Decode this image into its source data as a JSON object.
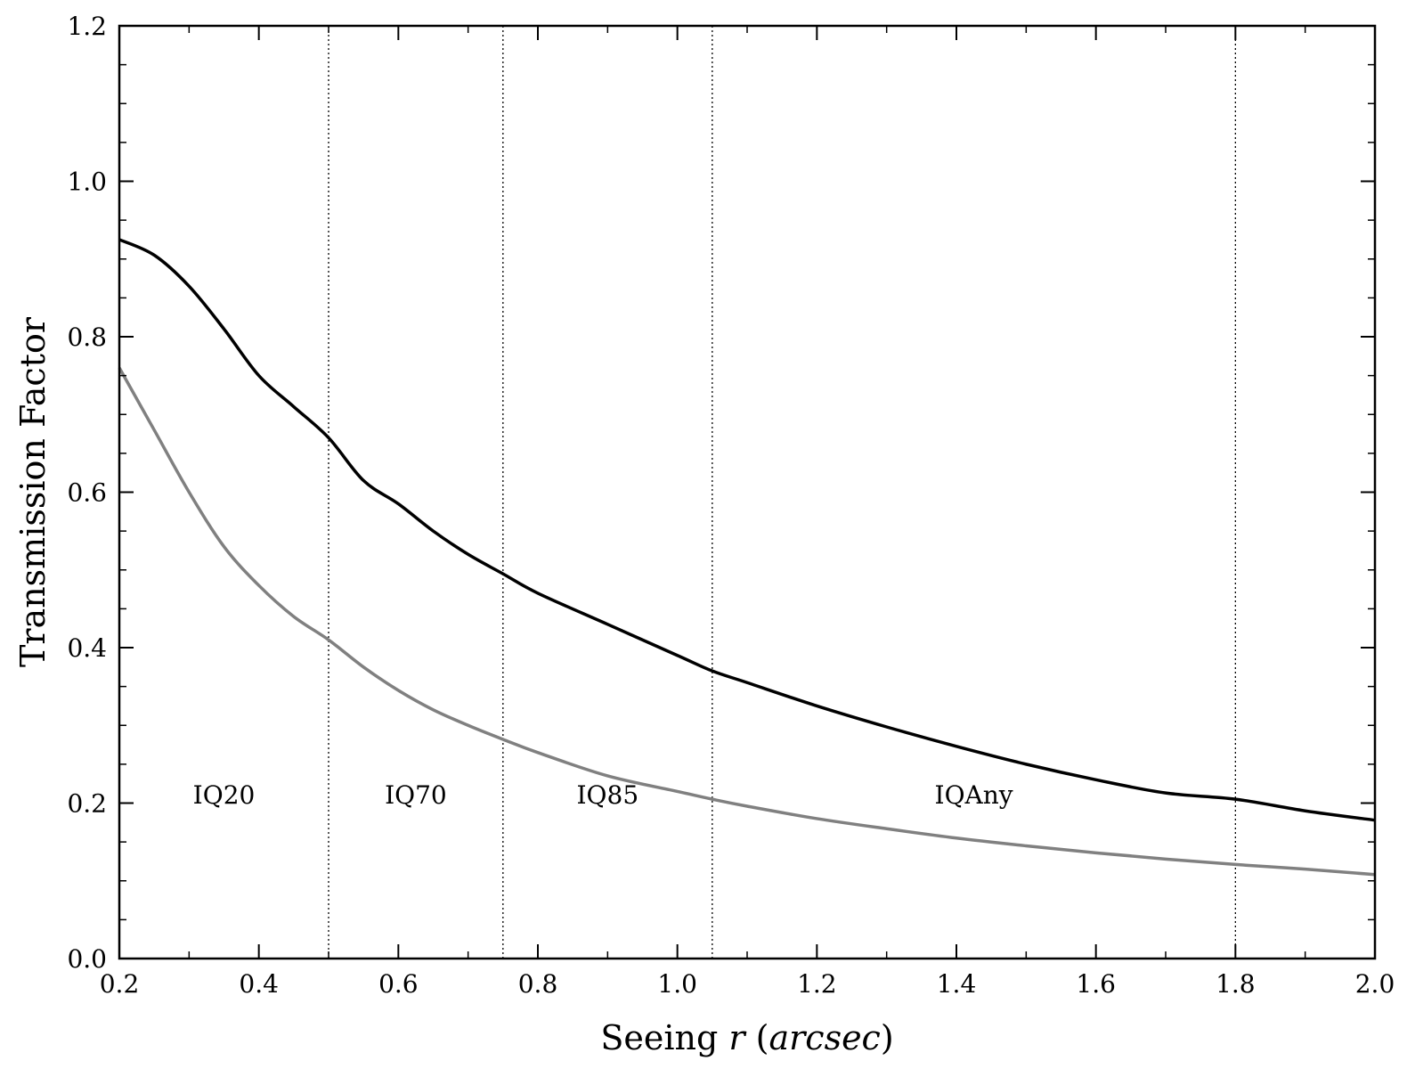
{
  "chart_data": {
    "type": "line",
    "title": "",
    "xlabel": "Seeing",
    "xlabel_var": "r",
    "xlabel_unit": "arcsec",
    "ylabel": "Transmission Factor",
    "xlim": [
      0.2,
      2.0
    ],
    "ylim": [
      0.0,
      1.2
    ],
    "x_ticks": [
      0.2,
      0.4,
      0.6,
      0.8,
      1.0,
      1.2,
      1.4,
      1.6,
      1.8,
      2.0
    ],
    "x_tick_labels": [
      "0.2",
      "0.4",
      "0.6",
      "0.8",
      "1.0",
      "1.2",
      "1.4",
      "1.6",
      "1.8",
      "2.0"
    ],
    "y_ticks": [
      0.0,
      0.2,
      0.4,
      0.6,
      0.8,
      1.0,
      1.2
    ],
    "y_tick_labels": [
      "0.0",
      "0.2",
      "0.4",
      "0.6",
      "0.8",
      "1.0",
      "1.2"
    ],
    "grid": false,
    "vertical_lines": [
      0.5,
      0.75,
      1.05,
      1.8
    ],
    "region_labels": [
      {
        "text": "IQ20",
        "x": 0.35,
        "y": 0.21
      },
      {
        "text": "IQ70",
        "x": 0.625,
        "y": 0.21
      },
      {
        "text": "IQ85",
        "x": 0.9,
        "y": 0.21
      },
      {
        "text": "IQAny",
        "x": 1.425,
        "y": 0.21
      }
    ],
    "series": [
      {
        "color": "#000000",
        "x": [
          0.2,
          0.25,
          0.3,
          0.35,
          0.4,
          0.45,
          0.5,
          0.55,
          0.6,
          0.65,
          0.7,
          0.75,
          0.8,
          0.9,
          1.0,
          1.05,
          1.1,
          1.2,
          1.3,
          1.4,
          1.5,
          1.6,
          1.7,
          1.8,
          1.9,
          2.0
        ],
        "y": [
          0.925,
          0.905,
          0.865,
          0.81,
          0.75,
          0.71,
          0.67,
          0.615,
          0.585,
          0.55,
          0.52,
          0.495,
          0.47,
          0.43,
          0.39,
          0.37,
          0.355,
          0.325,
          0.298,
          0.273,
          0.25,
          0.23,
          0.213,
          0.205,
          0.19,
          0.178
        ]
      },
      {
        "color": "#808080",
        "x": [
          0.2,
          0.25,
          0.3,
          0.35,
          0.4,
          0.45,
          0.5,
          0.55,
          0.6,
          0.65,
          0.7,
          0.75,
          0.8,
          0.9,
          1.0,
          1.05,
          1.1,
          1.2,
          1.3,
          1.4,
          1.5,
          1.6,
          1.7,
          1.8,
          1.9,
          2.0
        ],
        "y": [
          0.76,
          0.68,
          0.6,
          0.53,
          0.48,
          0.44,
          0.41,
          0.375,
          0.345,
          0.32,
          0.3,
          0.282,
          0.265,
          0.235,
          0.215,
          0.205,
          0.196,
          0.18,
          0.167,
          0.155,
          0.145,
          0.136,
          0.128,
          0.121,
          0.115,
          0.108
        ]
      }
    ]
  }
}
